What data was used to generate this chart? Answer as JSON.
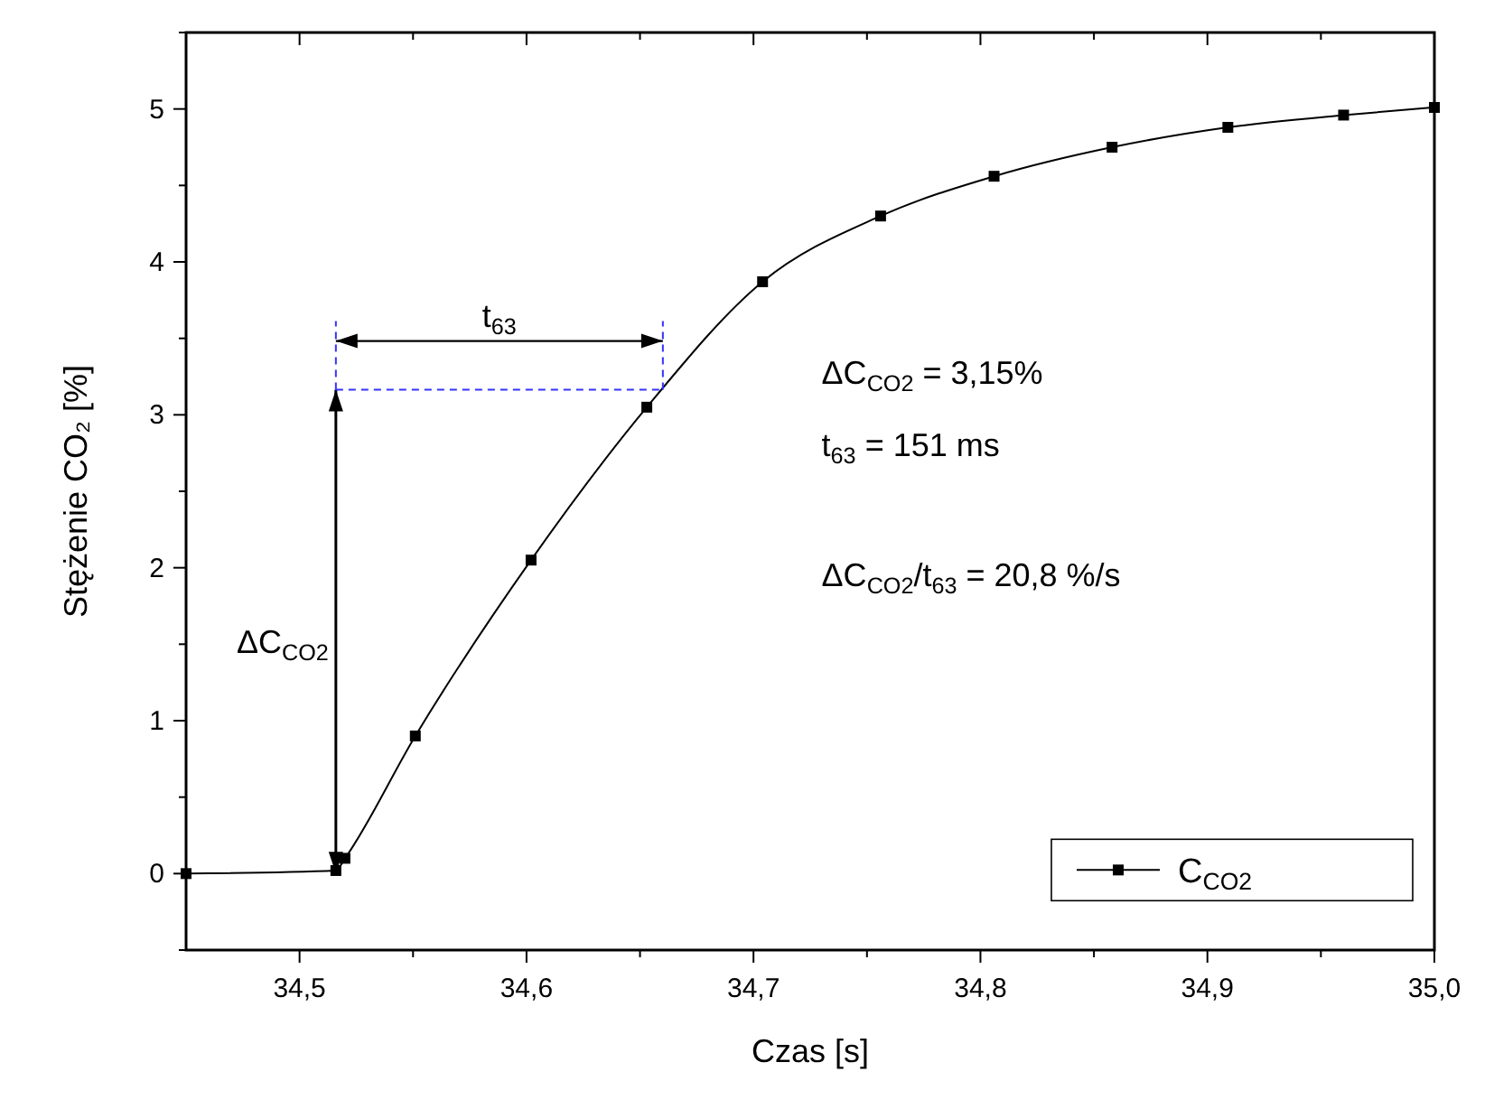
{
  "chart_data": {
    "type": "line",
    "xlabel": "Czas [s]",
    "ylabel": "Stężenie CO₂ [%]",
    "xlim": [
      34.45,
      35.0
    ],
    "ylim": [
      -0.5,
      5.5
    ],
    "xticks": [
      {
        "value": 34.5,
        "label": "34,5"
      },
      {
        "value": 34.55,
        "label": null
      },
      {
        "value": 34.6,
        "label": "34,6"
      },
      {
        "value": 34.65,
        "label": null
      },
      {
        "value": 34.7,
        "label": "34,7"
      },
      {
        "value": 34.75,
        "label": null
      },
      {
        "value": 34.8,
        "label": "34,8"
      },
      {
        "value": 34.85,
        "label": null
      },
      {
        "value": 34.9,
        "label": "34,9"
      },
      {
        "value": 34.95,
        "label": null
      },
      {
        "value": 35.0,
        "label": "35,0"
      }
    ],
    "yticks": [
      {
        "value": -0.5,
        "label": null
      },
      0,
      {
        "value": 0.5,
        "label": null
      },
      1,
      {
        "value": 1.5,
        "label": null
      },
      2,
      {
        "value": 2.5,
        "label": null
      },
      3,
      {
        "value": 3.5,
        "label": null
      },
      4,
      {
        "value": 4.5,
        "label": null
      },
      5,
      {
        "value": 5.5,
        "label": null
      }
    ],
    "x": [
      34.45,
      34.516,
      34.52,
      34.551,
      34.602,
      34.653,
      34.704,
      34.756,
      34.806,
      34.858,
      34.909,
      34.96,
      35.0
    ],
    "series": [
      {
        "name": "C$_{CO2}$",
        "color": "#000000",
        "values": [
          0,
          0.02,
          0.1,
          0.9,
          2.05,
          3.05,
          3.87,
          4.3,
          4.56,
          4.75,
          4.88,
          4.96,
          5.01
        ]
      }
    ],
    "marker": "square",
    "line_style": "solid",
    "grid": false,
    "legend": "bottom right",
    "annotations": [
      "ΔC$_{CO2}$",
      "t$_{63}$",
      "ΔC$_{CO2}$ = 3,15%",
      "t$_{63}$ = 151 ms",
      "ΔC$_{CO2}$/t$_{63}$ = 20,8 %/s"
    ]
  }
}
